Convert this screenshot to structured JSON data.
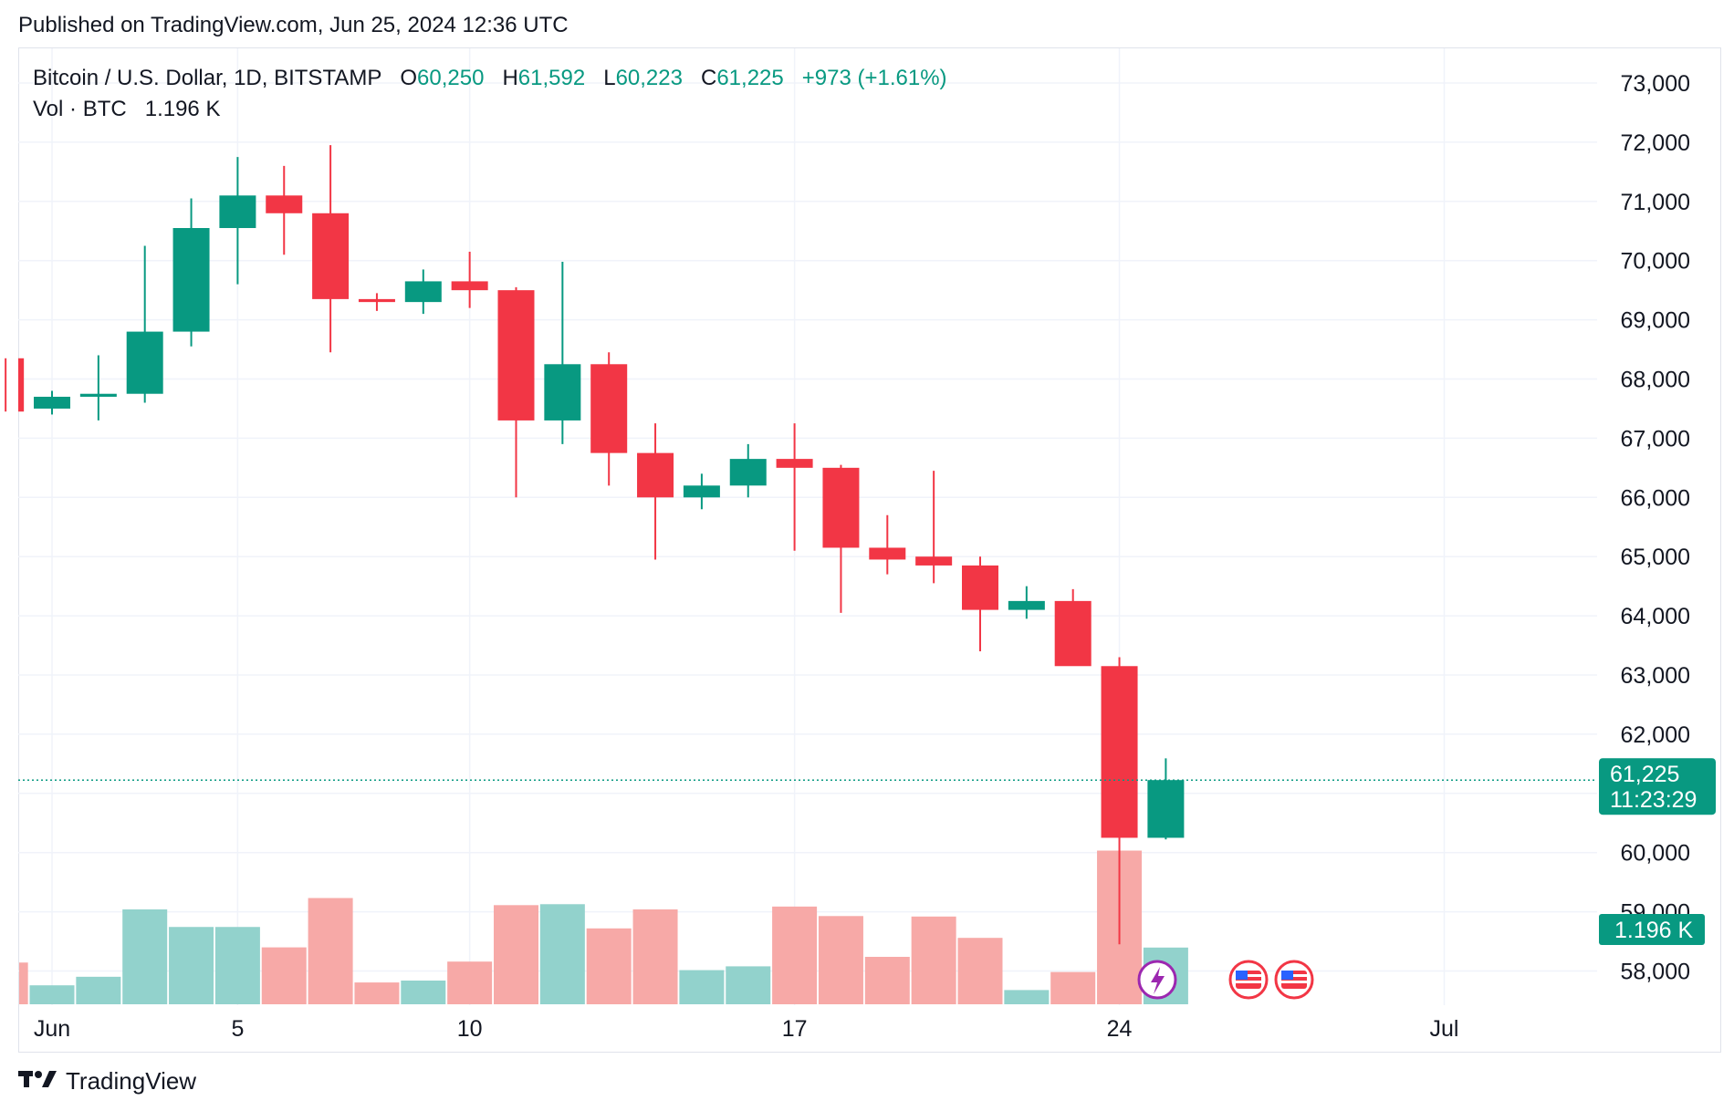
{
  "header": {
    "published": "Published on TradingView.com, Jun 25, 2024 12:36 UTC"
  },
  "legend": {
    "symbol": "Bitcoin / U.S. Dollar, 1D, BITSTAMP",
    "open_label": "O",
    "open": "60,250",
    "high_label": "H",
    "high": "61,592",
    "low_label": "L",
    "low": "60,223",
    "close_label": "C",
    "close": "61,225",
    "change": "+973 (+1.61%)",
    "vol_label": "Vol · BTC",
    "vol_value": "1.196 K"
  },
  "price_label": {
    "price": "61,225",
    "countdown": "11:23:29"
  },
  "volume_label": "1.196 K",
  "footer": {
    "brand": "TradingView",
    "logo": "tradingview-logo"
  },
  "colors": {
    "up": "#089981",
    "down": "#f23645",
    "up_vol": "#92d2cc",
    "down_vol": "#f7a9a7",
    "grid": "#f0f3fa"
  },
  "chart_data": {
    "type": "candlestick",
    "symbol": "BTCUSD",
    "interval": "1D",
    "y_ticks": [
      58000,
      59000,
      60000,
      61000,
      62000,
      63000,
      64000,
      65000,
      66000,
      67000,
      68000,
      69000,
      70000,
      71000,
      72000,
      73000
    ],
    "y_tick_labels": [
      "58,000",
      "59,000",
      "60,000",
      "",
      "62,000",
      "63,000",
      "64,000",
      "65,000",
      "66,000",
      "67,000",
      "68,000",
      "69,000",
      "70,000",
      "71,000",
      "72,000",
      "73,000"
    ],
    "x_ticks": [
      {
        "date": "2024-06-01",
        "label": "Jun"
      },
      {
        "date": "2024-06-05",
        "label": "5"
      },
      {
        "date": "2024-06-10",
        "label": "10"
      },
      {
        "date": "2024-06-17",
        "label": "17"
      },
      {
        "date": "2024-06-24",
        "label": "24"
      },
      {
        "date": "2024-07-01",
        "label": "Jul"
      }
    ],
    "candles": [
      {
        "date": "2024-05-31",
        "o": 68350,
        "h": 68350,
        "l": 67450,
        "c": 67450,
        "v": 0.88
      },
      {
        "date": "2024-06-01",
        "o": 67500,
        "h": 67800,
        "l": 67400,
        "c": 67700,
        "v": 0.4
      },
      {
        "date": "2024-06-02",
        "o": 67700,
        "h": 68400,
        "l": 67300,
        "c": 67750,
        "v": 0.58
      },
      {
        "date": "2024-06-03",
        "o": 67750,
        "h": 70250,
        "l": 67600,
        "c": 68800,
        "v": 2.0
      },
      {
        "date": "2024-06-04",
        "o": 68800,
        "h": 71050,
        "l": 68550,
        "c": 70550,
        "v": 1.63
      },
      {
        "date": "2024-06-05",
        "o": 70550,
        "h": 71750,
        "l": 69600,
        "c": 71100,
        "v": 1.63
      },
      {
        "date": "2024-06-06",
        "o": 71100,
        "h": 71600,
        "l": 70100,
        "c": 70800,
        "v": 1.2
      },
      {
        "date": "2024-06-07",
        "o": 70800,
        "h": 71950,
        "l": 68450,
        "c": 69350,
        "v": 2.24
      },
      {
        "date": "2024-06-08",
        "o": 69350,
        "h": 69450,
        "l": 69150,
        "c": 69300,
        "v": 0.46
      },
      {
        "date": "2024-06-09",
        "o": 69300,
        "h": 69850,
        "l": 69100,
        "c": 69650,
        "v": 0.5
      },
      {
        "date": "2024-06-10",
        "o": 69650,
        "h": 70150,
        "l": 69200,
        "c": 69500,
        "v": 0.9
      },
      {
        "date": "2024-06-11",
        "o": 69500,
        "h": 69550,
        "l": 66000,
        "c": 67300,
        "v": 2.09
      },
      {
        "date": "2024-06-12",
        "o": 67300,
        "h": 69980,
        "l": 66900,
        "c": 68250,
        "v": 2.11
      },
      {
        "date": "2024-06-13",
        "o": 68250,
        "h": 68450,
        "l": 66200,
        "c": 66750,
        "v": 1.6
      },
      {
        "date": "2024-06-14",
        "o": 66750,
        "h": 67250,
        "l": 64950,
        "c": 66000,
        "v": 2.0
      },
      {
        "date": "2024-06-15",
        "o": 66000,
        "h": 66400,
        "l": 65800,
        "c": 66200,
        "v": 0.72
      },
      {
        "date": "2024-06-16",
        "o": 66200,
        "h": 66900,
        "l": 66000,
        "c": 66650,
        "v": 0.8
      },
      {
        "date": "2024-06-17",
        "o": 66650,
        "h": 67250,
        "l": 65100,
        "c": 66500,
        "v": 2.06
      },
      {
        "date": "2024-06-18",
        "o": 66500,
        "h": 66550,
        "l": 64050,
        "c": 65150,
        "v": 1.86
      },
      {
        "date": "2024-06-19",
        "o": 65150,
        "h": 65700,
        "l": 64700,
        "c": 64950,
        "v": 1.0
      },
      {
        "date": "2024-06-20",
        "o": 65000,
        "h": 66450,
        "l": 64550,
        "c": 64850,
        "v": 1.85
      },
      {
        "date": "2024-06-21",
        "o": 64850,
        "h": 65000,
        "l": 63400,
        "c": 64100,
        "v": 1.4
      },
      {
        "date": "2024-06-22",
        "o": 64100,
        "h": 64500,
        "l": 63950,
        "c": 64250,
        "v": 0.3
      },
      {
        "date": "2024-06-23",
        "o": 64250,
        "h": 64450,
        "l": 63200,
        "c": 63150,
        "v": 0.68
      },
      {
        "date": "2024-06-24",
        "o": 63150,
        "h": 63300,
        "l": 58450,
        "c": 60250,
        "v": 3.24
      },
      {
        "date": "2024-06-25",
        "o": 60250,
        "h": 61592,
        "l": 60223,
        "c": 61225,
        "v": 1.196
      }
    ],
    "last_price": 61225,
    "grid": true
  }
}
